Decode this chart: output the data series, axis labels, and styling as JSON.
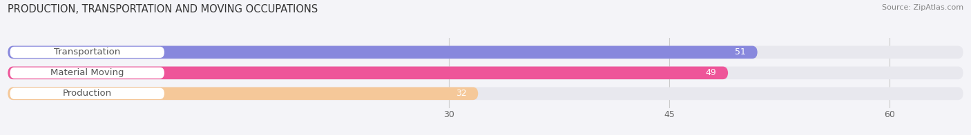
{
  "title": "PRODUCTION, TRANSPORTATION AND MOVING OCCUPATIONS",
  "source": "Source: ZipAtlas.com",
  "categories": [
    "Transportation",
    "Material Moving",
    "Production"
  ],
  "values": [
    51,
    49,
    32
  ],
  "bar_colors": [
    "#8888dd",
    "#ee5599",
    "#f5c899"
  ],
  "bg_bar_color": "#e8e8ee",
  "label_bg_color": "#ffffff",
  "label_text_color": "#555555",
  "value_text_color": "#ffffff",
  "xlim_min": 0,
  "xlim_max": 65,
  "xticks": [
    30,
    45,
    60
  ],
  "bar_height": 0.62,
  "background_color": "#f4f4f8",
  "title_fontsize": 10.5,
  "source_fontsize": 8.0,
  "label_fontsize": 9.5,
  "value_fontsize": 9.0,
  "tick_fontsize": 9.0,
  "grid_color": "#cccccc",
  "title_color": "#333333",
  "source_color": "#888888",
  "tick_color": "#666666"
}
